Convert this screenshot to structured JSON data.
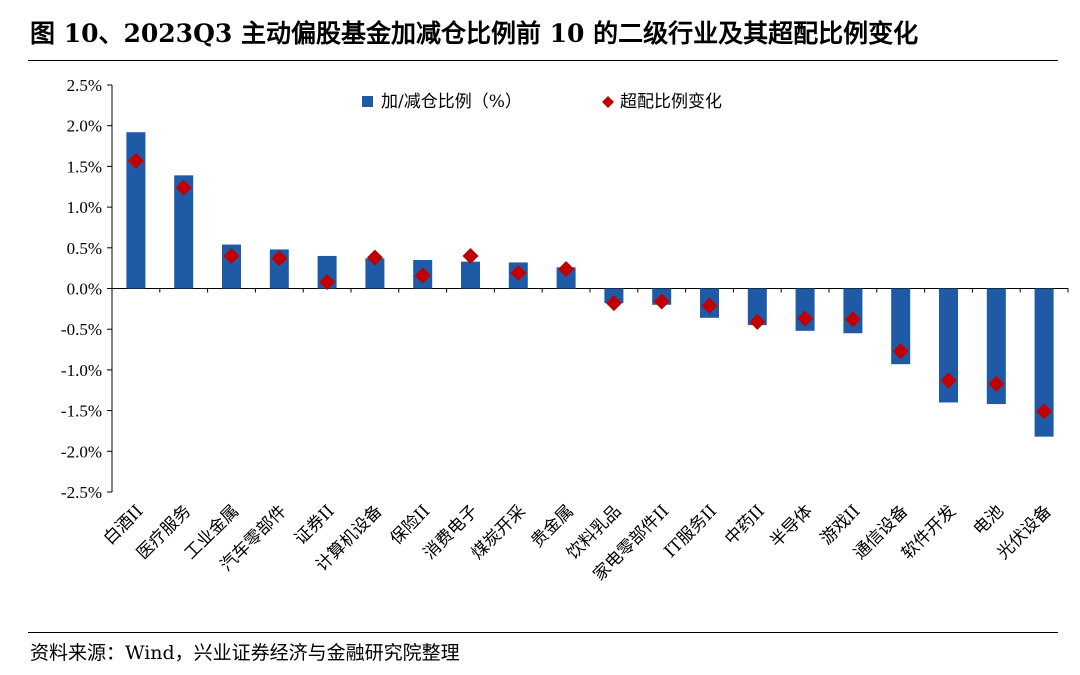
{
  "header": {
    "title": "图 10、2023Q3 主动偏股基金加减仓比例前 10 的二级行业及其超配比例变化"
  },
  "footer": {
    "source": "资料来源：Wind，兴业证券经济与金融研究院整理"
  },
  "colors": {
    "bar": "#1F5AA6",
    "marker": "#C00000"
  },
  "chart_data": {
    "type": "bar",
    "title": "",
    "xlabel": "",
    "ylabel": "",
    "ylim": [
      -2.5,
      2.5
    ],
    "yticks": [
      "2.5%",
      "2.0%",
      "1.5%",
      "1.0%",
      "0.5%",
      "0.0%",
      "-0.5%",
      "-1.0%",
      "-1.5%",
      "-2.0%",
      "-2.5%"
    ],
    "grid": false,
    "legend_position": "top-center",
    "categories": [
      "白酒II",
      "医疗服务",
      "工业金属",
      "汽车零部件",
      "证券II",
      "计算机设备",
      "保险II",
      "消费电子",
      "煤炭开采",
      "贵金属",
      "饮料乳品",
      "家电零部件II",
      "IT服务II",
      "中药II",
      "半导体",
      "游戏II",
      "通信设备",
      "软件开发",
      "电池",
      "光伏设备"
    ],
    "series": [
      {
        "name": "加/减仓比例（%）",
        "kind": "bar",
        "values": [
          1.92,
          1.39,
          0.54,
          0.48,
          0.4,
          0.37,
          0.35,
          0.33,
          0.32,
          0.26,
          -0.18,
          -0.2,
          -0.36,
          -0.45,
          -0.52,
          -0.55,
          -0.93,
          -1.4,
          -1.42,
          -1.82
        ]
      },
      {
        "name": "超配比例变化",
        "kind": "marker",
        "values": [
          1.57,
          1.24,
          0.4,
          0.37,
          0.08,
          0.38,
          0.16,
          0.4,
          0.19,
          0.24,
          -0.18,
          -0.16,
          -0.21,
          -0.41,
          -0.37,
          -0.38,
          -0.77,
          -1.13,
          -1.17,
          -1.51
        ]
      }
    ]
  }
}
